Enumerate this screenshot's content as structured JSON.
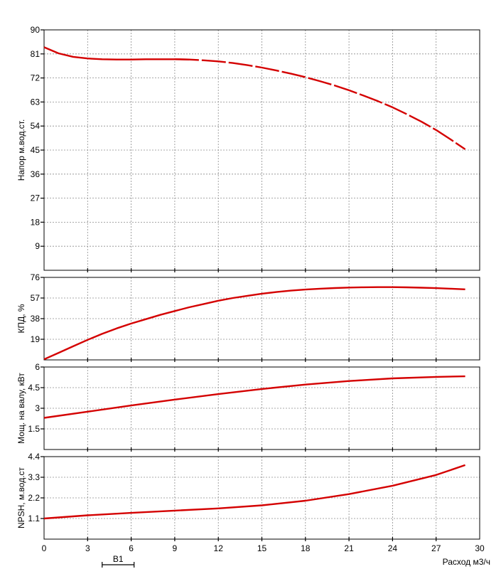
{
  "chart_data": [
    {
      "type": "line",
      "ylabel": "Напор м.вод.ст.",
      "xlabel": "",
      "xlim": [
        0,
        30
      ],
      "ylim": [
        0,
        90
      ],
      "xticks": [
        3,
        6,
        9,
        12,
        15,
        18,
        21,
        24,
        27,
        30
      ],
      "yticks": [
        9,
        18,
        27,
        36,
        45,
        54,
        63,
        72,
        81,
        90
      ],
      "ytick_labels": [
        "9",
        "18",
        "27",
        "36",
        "45",
        "54",
        "63",
        "72",
        "81",
        "90"
      ],
      "color": "#d40000",
      "dashed_from_x": 9.7,
      "series": [
        {
          "x": [
            0,
            1,
            2,
            3,
            4,
            5,
            6,
            7,
            8,
            9,
            10,
            11,
            12,
            13,
            14,
            15,
            16,
            17,
            18,
            19,
            20,
            21,
            22,
            23,
            24,
            25,
            26,
            27,
            28,
            29
          ],
          "y": [
            83.5,
            81.2,
            79.9,
            79.3,
            79.0,
            78.9,
            78.9,
            79.0,
            79.0,
            79.0,
            78.9,
            78.6,
            78.2,
            77.6,
            76.8,
            75.9,
            74.8,
            73.6,
            72.3,
            70.8,
            69.2,
            67.4,
            65.4,
            63.3,
            61.0,
            58.4,
            55.6,
            52.5,
            49.0,
            45.3
          ]
        }
      ]
    },
    {
      "type": "line",
      "ylabel": "КПД, %",
      "xlim": [
        0,
        30
      ],
      "ylim": [
        0,
        76
      ],
      "xticks": [
        3,
        6,
        9,
        12,
        15,
        18,
        21,
        24,
        27
      ],
      "yticks": [
        19,
        38,
        57,
        76
      ],
      "ytick_labels": [
        "19",
        "38",
        "57",
        "76"
      ],
      "color": "#d40000",
      "series": [
        {
          "x": [
            0,
            1,
            2,
            3,
            4,
            5,
            6,
            7,
            8,
            9,
            10,
            11,
            12,
            13,
            14,
            15,
            16,
            17,
            18,
            19,
            20,
            21,
            22,
            23,
            24,
            25,
            26,
            27,
            28,
            29
          ],
          "y": [
            0.5,
            6.5,
            12.5,
            18.5,
            24,
            29,
            33.5,
            37.5,
            41.5,
            45,
            48.5,
            51.5,
            54.5,
            57,
            59,
            61,
            62.5,
            63.8,
            64.8,
            65.6,
            66.2,
            66.6,
            66.9,
            67.0,
            67.0,
            66.8,
            66.5,
            66.1,
            65.6,
            65.0
          ]
        }
      ]
    },
    {
      "type": "line",
      "ylabel": "Мощ. на валу, кВт",
      "xlim": [
        0,
        30
      ],
      "ylim": [
        0,
        6
      ],
      "xticks": [
        3,
        6,
        9,
        12,
        15,
        18,
        21,
        24,
        27
      ],
      "yticks": [
        1.5,
        3,
        4.5,
        6
      ],
      "ytick_labels": [
        "1.5",
        "3",
        "4.5",
        "6"
      ],
      "color": "#d40000",
      "series": [
        {
          "x": [
            0,
            3,
            6,
            9,
            12,
            15,
            18,
            21,
            24,
            27,
            29
          ],
          "y": [
            2.3,
            2.75,
            3.2,
            3.63,
            4.03,
            4.4,
            4.72,
            4.98,
            5.17,
            5.28,
            5.32
          ]
        }
      ]
    },
    {
      "type": "line",
      "ylabel": "NPSH, м.вод.ст",
      "xlabel": "Расход м3/ч",
      "xlim": [
        0,
        30
      ],
      "ylim": [
        0,
        4.4
      ],
      "xticks": [
        0,
        3,
        6,
        9,
        12,
        15,
        18,
        21,
        24,
        27,
        30
      ],
      "xtick_labels": [
        "0",
        "3",
        "6",
        "9",
        "12",
        "15",
        "18",
        "21",
        "24",
        "27",
        "30"
      ],
      "yticks": [
        1.1,
        2.2,
        3.3,
        4.4
      ],
      "ytick_labels": [
        "1.1",
        "2.2",
        "3.3",
        "4.4"
      ],
      "color": "#d40000",
      "series": [
        {
          "x": [
            0,
            3,
            6,
            9,
            12,
            15,
            18,
            21,
            24,
            27,
            29
          ],
          "y": [
            1.1,
            1.27,
            1.4,
            1.52,
            1.64,
            1.8,
            2.05,
            2.4,
            2.85,
            3.42,
            3.95
          ]
        }
      ]
    }
  ],
  "annotation": {
    "label": "B1",
    "x_from": 4,
    "x_to": 6.2
  }
}
